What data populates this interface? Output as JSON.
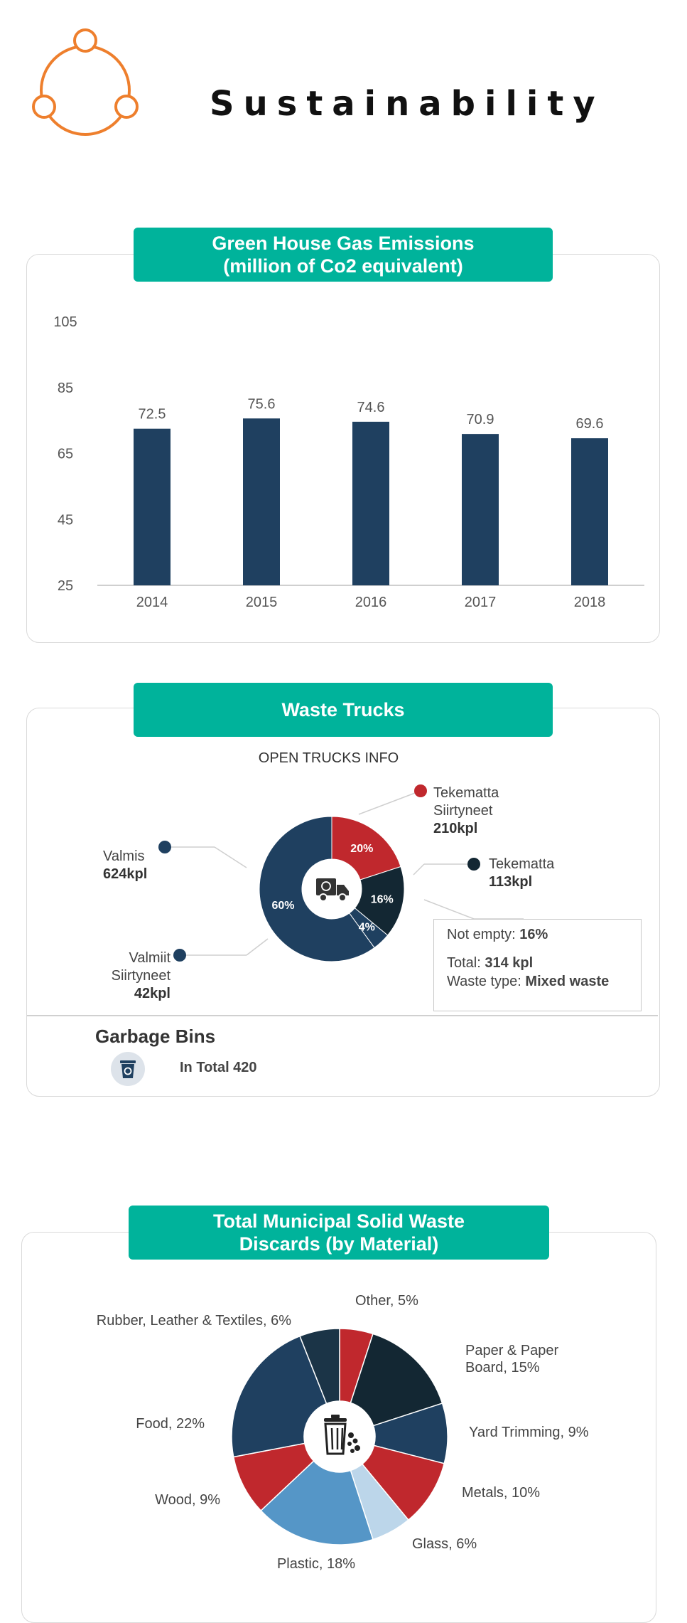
{
  "page": {
    "title": "Sustainability"
  },
  "colors": {
    "accent": "#00b39b",
    "bar": "#1f4060",
    "orange": "#ee7f2d",
    "red": "#c0282d",
    "light_blue": "#5596c7",
    "pale_blue": "#bcd6ea",
    "dark_navy": "#132733"
  },
  "emissions": {
    "title_line1": "Green House Gas Emissions",
    "title_line2": "(million of Co2 equivalent)"
  },
  "trucks": {
    "title": "Waste Trucks",
    "subtitle": "OPEN TRUCKS INFO",
    "labels": {
      "valmis": {
        "name": "Valmis",
        "value": "624kpl"
      },
      "valmiit": {
        "name1": "Valmiit",
        "name2": "Siirtyneet",
        "value": "42kpl"
      },
      "tekematta_siirtyneet": {
        "name1": "Tekematta",
        "name2": "Siirtyneet",
        "value": "210kpl"
      },
      "tekematta": {
        "name": "Tekematta",
        "value": "113kpl"
      }
    },
    "info_box": {
      "not_empty_label": "Not empty: ",
      "not_empty_value": "16%",
      "total_label": "Total: ",
      "total_value": "314 kpl",
      "waste_type_label": "Waste type: ",
      "waste_type_value": "Mixed waste"
    },
    "truck_icon": "truck-recycle-icon",
    "bins": {
      "title": "Garbage Bins",
      "total": "In Total 420",
      "icon": "recycle-bin-icon"
    }
  },
  "msw": {
    "title_line1": "Total Municipal Solid Waste",
    "title_line2": "Discards (by Material)",
    "center_icon": "trash-can-icon"
  },
  "chart_data": [
    {
      "type": "bar",
      "title": "Green House Gas Emissions (million of Co2 equivalent)",
      "categories": [
        "2014",
        "2015",
        "2016",
        "2017",
        "2018"
      ],
      "values": [
        72.5,
        75.6,
        74.6,
        70.9,
        69.6
      ],
      "data_labels": [
        "72.5",
        "75.6",
        "74.6",
        "70.9",
        "69.6"
      ],
      "ylim": [
        25,
        105
      ],
      "yticks": [
        "105",
        "85",
        "65",
        "45",
        "25"
      ],
      "grid": false
    },
    {
      "type": "pie",
      "title": "OPEN TRUCKS INFO",
      "slices": [
        {
          "value": 20,
          "label": "20%",
          "color": "#c0282d"
        },
        {
          "value": 16,
          "label": "16%",
          "color": "#132733"
        },
        {
          "value": 4,
          "label": "4%",
          "color": "#1f4060"
        },
        {
          "value": 60,
          "label": "60%",
          "color": "#1f4060"
        }
      ]
    },
    {
      "type": "pie",
      "title": "Total Municipal Solid Waste Discards (by Material)",
      "slices": [
        {
          "name": "Other, 5%",
          "value": 5,
          "color": "#c0282d"
        },
        {
          "name": "Paper & Paper Board, 15%",
          "value": 15,
          "color": "#132733"
        },
        {
          "name": "Yard Trimming, 9%",
          "value": 9,
          "color": "#1f4060"
        },
        {
          "name": "Metals, 10%",
          "value": 10,
          "color": "#c0282d"
        },
        {
          "name": "Glass, 6%",
          "value": 6,
          "color": "#bcd6ea"
        },
        {
          "name": "Plastic, 18%",
          "value": 18,
          "color": "#5596c7"
        },
        {
          "name": "Wood, 9%",
          "value": 9,
          "color": "#c0282d"
        },
        {
          "name": "Food, 22%",
          "value": 22,
          "color": "#1f4060"
        },
        {
          "name": "Rubber, Leather & Textiles, 6%",
          "value": 6,
          "color": "#1b3447"
        }
      ]
    }
  ]
}
